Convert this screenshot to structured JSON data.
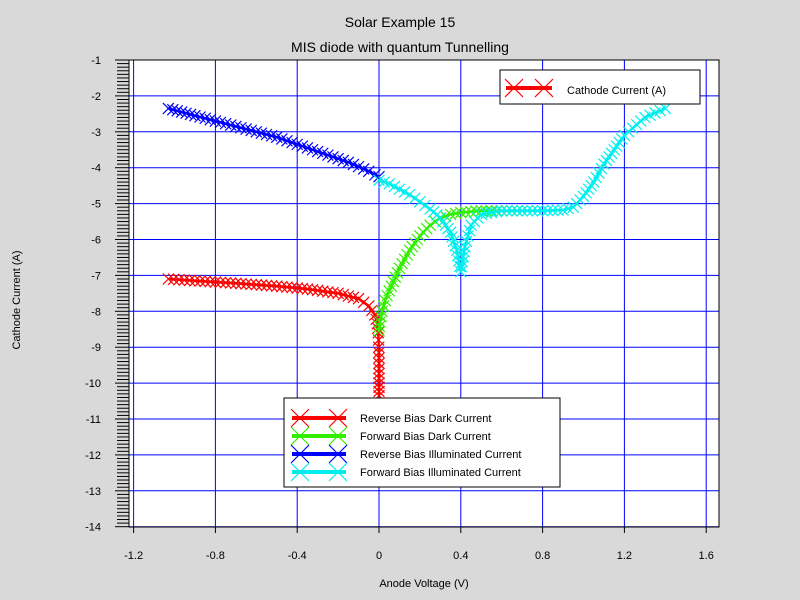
{
  "chart_data": {
    "type": "scatter",
    "title": "Solar Example 15",
    "subtitle": "MIS diode with quantum Tunnelling",
    "xlabel": "Anode Voltage (V)",
    "ylabel": "Cathode Current (A)",
    "xlim": [
      -1.26,
      1.67
    ],
    "ylim": [
      -14,
      -1
    ],
    "grid": true,
    "xticks": [
      "-1.2",
      "-0.8",
      "-0.4",
      "0",
      "0.4",
      "0.8",
      "1.2",
      "1.6"
    ],
    "yticks": [
      "-1",
      "-2",
      "-3",
      "-4",
      "-5",
      "-6",
      "-7",
      "-8",
      "-9",
      "-10",
      "-11",
      "-12",
      "-13",
      "-14"
    ],
    "legend_top": {
      "position": "top-right",
      "entries": [
        {
          "label": "Cathode Current (A)",
          "color": "#ff0000"
        }
      ]
    },
    "legend_bottom": {
      "position": "bottom-center",
      "entries": [
        {
          "label": "Reverse Bias Dark Current",
          "color": "#ff0000"
        },
        {
          "label": "Forward Bias Dark Current",
          "color": "#33ee00"
        },
        {
          "label": "Reverse Bias Illuminated Current",
          "color": "#0000ff"
        },
        {
          "label": "Forward Bias Illuminated Current",
          "color": "#00eeee"
        }
      ]
    },
    "series": [
      {
        "color": "#ff0000",
        "x": [
          -1.03,
          -0.9,
          -0.7,
          -0.5,
          -0.35,
          -0.2,
          -0.1,
          -0.05,
          -0.02,
          -0.008,
          -0.004,
          -0.002,
          -0.001,
          0.0,
          0.0,
          0.0,
          0.0
        ],
        "y": [
          -7.1,
          -7.15,
          -7.22,
          -7.3,
          -7.38,
          -7.5,
          -7.65,
          -7.85,
          -8.1,
          -8.35,
          -8.6,
          -8.8,
          -9.0,
          -9.3,
          -9.6,
          -10.0,
          -10.35
        ]
      },
      {
        "color": "#33ee00",
        "x": [
          0.0,
          0.005,
          0.015,
          0.03,
          0.06,
          0.1,
          0.15,
          0.2,
          0.25,
          0.3,
          0.35,
          0.4,
          0.5,
          0.6,
          0.7
        ],
        "y": [
          -8.55,
          -8.3,
          -8.0,
          -7.7,
          -7.3,
          -6.8,
          -6.3,
          -5.9,
          -5.6,
          -5.4,
          -5.3,
          -5.25,
          -5.2,
          -5.2,
          -5.2
        ]
      },
      {
        "color": "#0000ff",
        "x": [
          -1.03,
          -0.9,
          -0.8,
          -0.7,
          -0.6,
          -0.5,
          -0.4,
          -0.3,
          -0.2,
          -0.15,
          -0.1,
          -0.05,
          -0.02,
          0.0
        ],
        "y": [
          -2.35,
          -2.55,
          -2.7,
          -2.85,
          -3.0,
          -3.15,
          -3.35,
          -3.55,
          -3.75,
          -3.85,
          -3.97,
          -4.1,
          -4.2,
          -4.25
        ]
      },
      {
        "color": "#00eeee",
        "x": [
          0.0,
          0.05,
          0.1,
          0.15,
          0.2,
          0.25,
          0.3,
          0.35,
          0.38,
          0.4,
          0.42,
          0.45,
          0.5,
          0.6,
          0.7,
          0.8,
          0.9,
          0.95,
          1.0,
          1.05,
          1.1,
          1.15,
          1.2,
          1.3,
          1.4
        ],
        "y": [
          -4.35,
          -4.45,
          -4.6,
          -4.75,
          -4.95,
          -5.15,
          -5.4,
          -5.8,
          -6.3,
          -6.9,
          -6.2,
          -5.6,
          -5.3,
          -5.2,
          -5.2,
          -5.2,
          -5.18,
          -5.1,
          -4.8,
          -4.4,
          -3.9,
          -3.5,
          -3.1,
          -2.6,
          -2.35
        ]
      }
    ]
  }
}
